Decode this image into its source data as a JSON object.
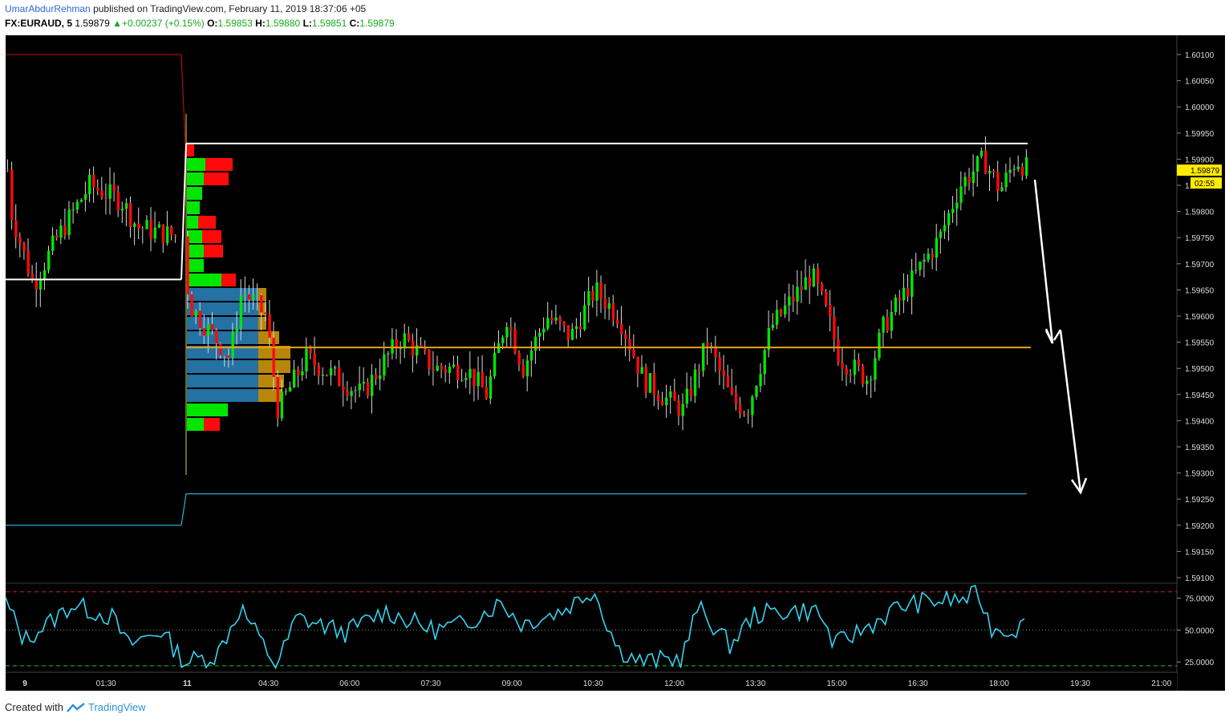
{
  "header": {
    "author": "UmarAbdurRehman",
    "published_text": "published on TradingView.com, February 11, 2019 18:37:06 +05",
    "symbol": "FX:EURAUD, 5",
    "last": "1.59879",
    "change": "+0.00237 (+0.15%)",
    "o_label": "O:",
    "o_value": "1.59853",
    "h_label": "H:",
    "h_value": "1.59880",
    "l_label": "L:",
    "l_value": "1.59851",
    "c_label": "C:",
    "c_value": "1.59879"
  },
  "price_axis": {
    "ticks": [
      "1.60100",
      "1.60050",
      "1.60000",
      "1.59950",
      "1.59900",
      "1.59850",
      "1.59800",
      "1.59750",
      "1.59700",
      "1.59650",
      "1.59600",
      "1.59550",
      "1.59500",
      "1.59450",
      "1.59400",
      "1.59350",
      "1.59300",
      "1.59250",
      "1.59200",
      "1.59150",
      "1.59100"
    ],
    "current_price_tag": "1.59879",
    "countdown_tag": "02:55"
  },
  "oscillator_axis": {
    "ticks": [
      "75.0000",
      "50.0000",
      "25.0000"
    ]
  },
  "time_axis": {
    "labels": [
      "9",
      "01:30",
      "11",
      "04:30",
      "06:00",
      "07:30",
      "09:00",
      "10:30",
      "12:00",
      "13:30",
      "15:00",
      "16:30",
      "18:00",
      "19:30",
      "21:00"
    ]
  },
  "colors": {
    "background": "#000000",
    "bull": "#00e600",
    "bear": "#ff0a0a",
    "poc_line": "#e8a317",
    "value_area": "#2471a3",
    "volume_profile_outside": "#b8860b",
    "oscillator_line": "#35d4f0",
    "lower_band": "#35d4f0",
    "upper_band": "#cc1111",
    "price_tag_bg": "#ffeb00"
  },
  "chart_data": {
    "type": "candlestick",
    "symbol": "FX:EURAUD",
    "interval": "5",
    "ylim": [
      1.5907,
      1.6013
    ],
    "levels": {
      "resistance": 1.5993,
      "pivot_left": 1.5967,
      "poc": 1.5954,
      "support_band": 1.5926,
      "upper_band_left": 1.601,
      "lower_band_left": 1.592
    },
    "oscillator": {
      "ylim": [
        15,
        88
      ],
      "overbought": 80,
      "oversold": 22,
      "mid": 50
    },
    "last_close": 1.59879
  },
  "footer": {
    "created_with": "Created with",
    "brand": "TradingView"
  }
}
